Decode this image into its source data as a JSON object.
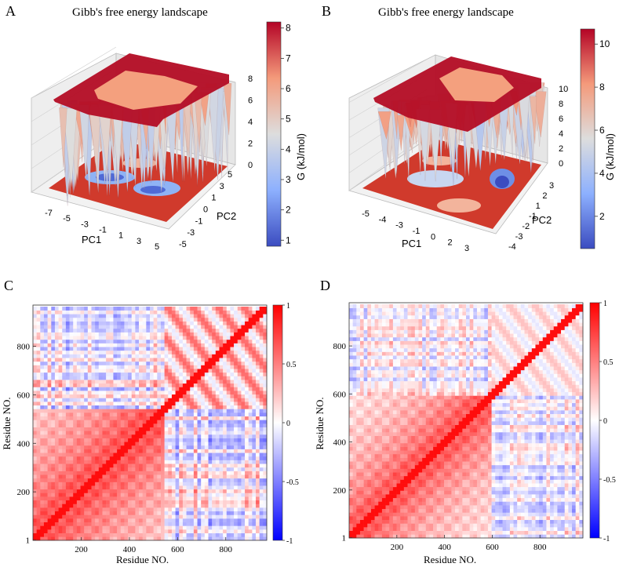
{
  "panels": [
    {
      "letter": "A",
      "chart_data": {
        "type": "surface3d",
        "title": "Gibb's free energy landscape",
        "xlabel": "PC1",
        "ylabel": "PC2",
        "zticks": [
          "0",
          "2",
          "4",
          "6",
          "8"
        ],
        "xticks": [
          "-7",
          "-5",
          "-3",
          "-1",
          "1",
          "3",
          "5"
        ],
        "yticks": [
          "-5",
          "-3",
          "-1",
          "0",
          "1",
          "3",
          "5"
        ],
        "zlim": [
          0,
          8
        ],
        "colorbar": {
          "label": "G (kJ/mol)",
          "ticks": [
            "1",
            "2",
            "3",
            "4",
            "5",
            "6",
            "7",
            "8"
          ],
          "range": [
            0.8,
            8.2
          ],
          "colormap": "coolwarm"
        }
      }
    },
    {
      "letter": "B",
      "chart_data": {
        "type": "surface3d",
        "title": "Gibb's free energy landscape",
        "xlabel": "PC1",
        "ylabel": "PC2",
        "zticks": [
          "0",
          "2",
          "4",
          "6",
          "8",
          "10"
        ],
        "xticks": [
          "-5",
          "-4",
          "-3",
          "-1",
          "0",
          "2",
          "3"
        ],
        "yticks": [
          "-4",
          "-3",
          "-2",
          "-1",
          "1",
          "2",
          "3"
        ],
        "zlim": [
          0,
          10.5
        ],
        "colorbar": {
          "label": "G (kJ/mol)",
          "ticks": [
            "2",
            "4",
            "6",
            "8",
            "10"
          ],
          "range": [
            0.5,
            10.7
          ],
          "colormap": "coolwarm"
        }
      }
    },
    {
      "letter": "C",
      "chart_data": {
        "type": "heatmap",
        "xlabel": "Residue NO.",
        "ylabel": "Residue NO.",
        "xticks": [
          "200",
          "400",
          "600",
          "800"
        ],
        "yticks": [
          "1",
          "200",
          "400",
          "600",
          "800"
        ],
        "n": 970,
        "domain_boundary": 545,
        "colorbar": {
          "ticks": [
            "1",
            "0.5",
            "0",
            "-0.5",
            "-1"
          ],
          "range": [
            -1,
            1
          ],
          "colormap": "bwr"
        }
      }
    },
    {
      "letter": "D",
      "chart_data": {
        "type": "heatmap",
        "xlabel": "Residue NO.",
        "ylabel": "Residue NO.",
        "xticks": [
          "200",
          "400",
          "600",
          "800"
        ],
        "yticks": [
          "1",
          "200",
          "400",
          "600",
          "800"
        ],
        "n": 980,
        "domain_boundary": 590,
        "colorbar": {
          "ticks": [
            "1",
            "0.5",
            "0",
            "-0.5",
            "-1"
          ],
          "range": [
            -1,
            1
          ],
          "colormap": "bwr"
        }
      }
    }
  ]
}
